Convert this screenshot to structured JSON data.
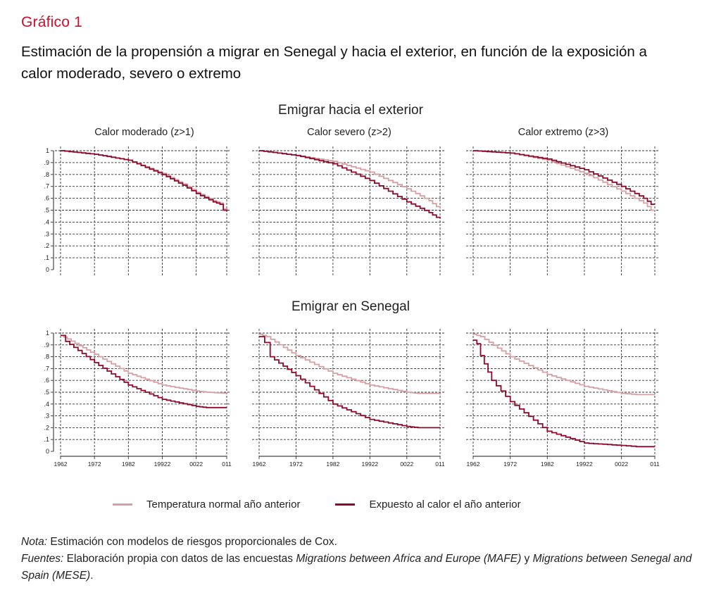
{
  "header": {
    "kicker": "Gráfico 1",
    "title": "Estimación de la propensión a migrar en Senegal y hacia el exterior, en función de la exposición a calor moderado, severo o extremo"
  },
  "colors": {
    "accent": "#c8102e",
    "normal": "#d4a0a3",
    "exposed": "#8b0a2a"
  },
  "legend": [
    {
      "key": "normal",
      "label": "Temperatura normal año anterior"
    },
    {
      "key": "exposed",
      "label": "Expuesto al calor el año anterior"
    }
  ],
  "notes": {
    "nota_label": "Nota:",
    "nota_text": " Estimación con modelos de riesgos proporcionales de Cox.",
    "fuentes_label": "Fuentes:",
    "fuentes_text_1": " Elaboración propia con datos de las encuestas ",
    "fuentes_italic_1": "Migrations between Africa and Europe (MAFE)",
    "fuentes_text_2": " y ",
    "fuentes_italic_2": "Migrations between Senegal and Spain (MESE)",
    "fuentes_text_3": "."
  },
  "chart_data": [
    {
      "type": "line",
      "step": true,
      "section": "Emigrar hacia el exterior",
      "title": "Calor moderado (z>1)",
      "ylim": [
        0,
        1
      ],
      "yticks": [
        0,
        0.1,
        0.2,
        0.3,
        0.4,
        0.5,
        0.6,
        0.7,
        0.8,
        0.9,
        1
      ],
      "ytick_labels": [
        "0",
        ".1",
        ".2",
        ".3",
        ".4",
        ".5",
        ".6",
        ".7",
        ".8",
        ".9",
        "1"
      ],
      "xlim": [
        0,
        49
      ],
      "xticks": [
        0,
        10,
        20,
        30,
        40,
        49
      ],
      "xtick_labels": [],
      "grid": true,
      "series": [
        {
          "name": "Temperatura normal año anterior",
          "key": "normal",
          "x": [
            0,
            10,
            20,
            30,
            36,
            40,
            45,
            47,
            48,
            49
          ],
          "y": [
            1.0,
            0.97,
            0.92,
            0.81,
            0.72,
            0.65,
            0.58,
            0.56,
            0.51,
            0.5
          ]
        },
        {
          "name": "Expuesto al calor el año anterior",
          "key": "exposed",
          "x": [
            0,
            10,
            20,
            30,
            36,
            40,
            45,
            47,
            48,
            49
          ],
          "y": [
            1.0,
            0.97,
            0.92,
            0.8,
            0.71,
            0.64,
            0.57,
            0.55,
            0.5,
            0.49
          ]
        }
      ]
    },
    {
      "type": "line",
      "step": true,
      "section": "Emigrar hacia el exterior",
      "title": "Calor severo (z>2)",
      "ylim": [
        0,
        1
      ],
      "yticks": [
        0,
        0.1,
        0.2,
        0.3,
        0.4,
        0.5,
        0.6,
        0.7,
        0.8,
        0.9,
        1
      ],
      "ytick_labels": [],
      "xlim": [
        0,
        49
      ],
      "xticks": [
        0,
        10,
        20,
        30,
        40,
        49
      ],
      "xtick_labels": [],
      "grid": true,
      "series": [
        {
          "name": "Temperatura normal año anterior",
          "key": "normal",
          "x": [
            0,
            10,
            20,
            30,
            40,
            46,
            48,
            49
          ],
          "y": [
            1.0,
            0.96,
            0.91,
            0.82,
            0.68,
            0.58,
            0.53,
            0.52
          ]
        },
        {
          "name": "Expuesto al calor el año anterior",
          "key": "exposed",
          "x": [
            0,
            10,
            20,
            30,
            40,
            46,
            48,
            49
          ],
          "y": [
            1.0,
            0.96,
            0.89,
            0.75,
            0.57,
            0.48,
            0.44,
            0.43
          ]
        }
      ]
    },
    {
      "type": "line",
      "step": true,
      "section": "Emigrar hacia el exterior",
      "title": "Calor extremo (z>3)",
      "ylim": [
        0,
        1
      ],
      "yticks": [
        0,
        0.1,
        0.2,
        0.3,
        0.4,
        0.5,
        0.6,
        0.7,
        0.8,
        0.9,
        1
      ],
      "ytick_labels": [],
      "xlim": [
        0,
        49
      ],
      "xticks": [
        0,
        10,
        20,
        30,
        40,
        49
      ],
      "xtick_labels": [],
      "grid": true,
      "series": [
        {
          "name": "Temperatura normal año anterior",
          "key": "normal",
          "x": [
            0,
            10,
            20,
            30,
            40,
            46,
            48,
            49
          ],
          "y": [
            1.0,
            0.98,
            0.92,
            0.81,
            0.66,
            0.56,
            0.5,
            0.5
          ]
        },
        {
          "name": "Expuesto al calor el año anterior",
          "key": "exposed",
          "x": [
            0,
            10,
            20,
            30,
            40,
            46,
            48,
            49
          ],
          "y": [
            1.0,
            0.98,
            0.93,
            0.84,
            0.7,
            0.6,
            0.55,
            0.55
          ]
        }
      ]
    },
    {
      "type": "line",
      "step": true,
      "section": "Emigrar en Senegal",
      "title": "",
      "ylim": [
        0,
        1
      ],
      "yticks": [
        0,
        0.1,
        0.2,
        0.3,
        0.4,
        0.5,
        0.6,
        0.7,
        0.8,
        0.9,
        1
      ],
      "ytick_labels": [
        "0",
        ".1",
        ".2",
        ".3",
        ".4",
        ".5",
        ".6",
        ".7",
        ".8",
        ".9",
        "1"
      ],
      "xlim": [
        0,
        49
      ],
      "xticks": [
        0,
        10,
        20,
        30,
        40,
        49
      ],
      "xtick_labels": [
        "1962",
        "1972",
        "1982",
        "19922",
        "0022",
        "011"
      ],
      "grid": true,
      "series": [
        {
          "name": "Temperatura normal año anterior",
          "key": "normal",
          "x": [
            0,
            2,
            10,
            20,
            30,
            40,
            43,
            49
          ],
          "y": [
            0.98,
            0.95,
            0.82,
            0.66,
            0.56,
            0.51,
            0.5,
            0.49
          ]
        },
        {
          "name": "Expuesto al calor el año anterior",
          "key": "exposed",
          "x": [
            0,
            1.5,
            10,
            20,
            30,
            40,
            43,
            49
          ],
          "y": [
            0.98,
            0.93,
            0.75,
            0.56,
            0.44,
            0.38,
            0.37,
            0.37
          ]
        }
      ]
    },
    {
      "type": "line",
      "step": true,
      "section": "Emigrar en Senegal",
      "title": "",
      "ylim": [
        0,
        1
      ],
      "yticks": [
        0,
        0.1,
        0.2,
        0.3,
        0.4,
        0.5,
        0.6,
        0.7,
        0.8,
        0.9,
        1
      ],
      "ytick_labels": [],
      "xlim": [
        0,
        49
      ],
      "xticks": [
        0,
        10,
        20,
        30,
        40,
        49
      ],
      "xtick_labels": [
        "1962",
        "1972",
        "1982",
        "19922",
        "0022",
        "011"
      ],
      "grid": true,
      "series": [
        {
          "name": "Temperatura normal año anterior",
          "key": "normal",
          "x": [
            0,
            2,
            10,
            20,
            30,
            40,
            43,
            49
          ],
          "y": [
            0.99,
            0.97,
            0.81,
            0.66,
            0.56,
            0.5,
            0.49,
            0.49
          ]
        },
        {
          "name": "Expuesto al calor el año anterior",
          "key": "exposed",
          "x": [
            0,
            1.5,
            3,
            10,
            20,
            30,
            40,
            43,
            49
          ],
          "y": [
            0.97,
            0.92,
            0.8,
            0.64,
            0.4,
            0.27,
            0.21,
            0.2,
            0.2
          ]
        }
      ]
    },
    {
      "type": "line",
      "step": true,
      "section": "Emigrar en Senegal",
      "title": "",
      "ylim": [
        0,
        1
      ],
      "yticks": [
        0,
        0.1,
        0.2,
        0.3,
        0.4,
        0.5,
        0.6,
        0.7,
        0.8,
        0.9,
        1
      ],
      "ytick_labels": [],
      "xlim": [
        0,
        49
      ],
      "xticks": [
        0,
        10,
        20,
        30,
        40,
        49
      ],
      "xtick_labels": [
        "1962",
        "1972",
        "1982",
        "19922",
        "0022",
        "011"
      ],
      "grid": true,
      "series": [
        {
          "name": "Temperatura normal año anterior",
          "key": "normal",
          "x": [
            0,
            2,
            10,
            20,
            30,
            40,
            44,
            49
          ],
          "y": [
            0.99,
            0.97,
            0.8,
            0.65,
            0.55,
            0.49,
            0.48,
            0.48
          ]
        },
        {
          "name": "Expuesto al calor el año anterior",
          "key": "exposed",
          "x": [
            0,
            1,
            2,
            3,
            5,
            10,
            20,
            30,
            40,
            44,
            49
          ],
          "y": [
            0.94,
            0.91,
            0.81,
            0.74,
            0.6,
            0.42,
            0.17,
            0.07,
            0.05,
            0.04,
            0.04
          ]
        }
      ]
    }
  ]
}
